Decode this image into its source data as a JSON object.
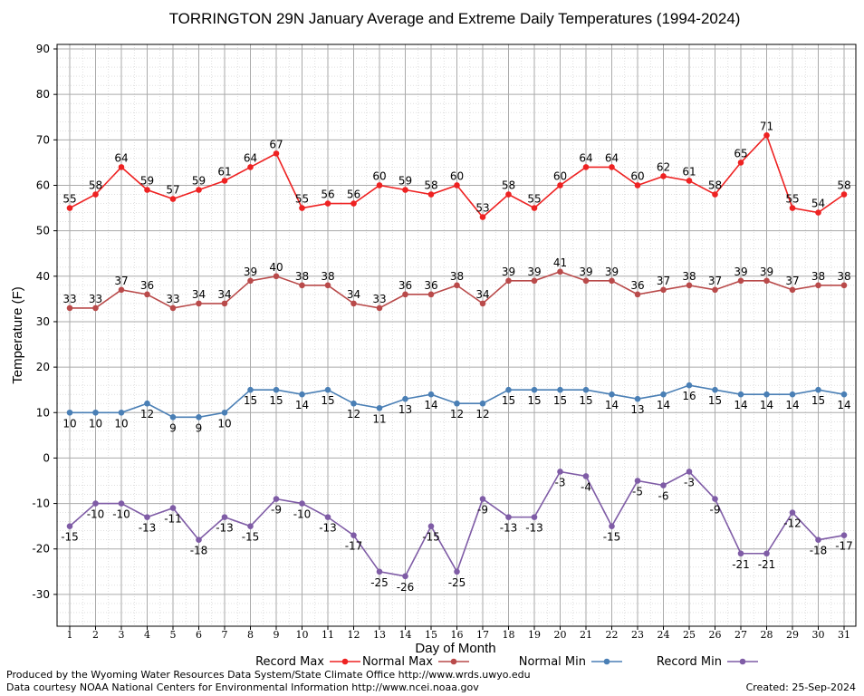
{
  "chart_data": {
    "type": "line",
    "title": "TORRINGTON 29N January Average and Extreme Daily Temperatures (1994-2024)",
    "xlabel": "Day of Month",
    "ylabel": "Temperature (F)",
    "x": [
      1,
      2,
      3,
      4,
      5,
      6,
      7,
      8,
      9,
      10,
      11,
      12,
      13,
      14,
      15,
      16,
      17,
      18,
      19,
      20,
      21,
      22,
      23,
      24,
      25,
      26,
      27,
      28,
      29,
      30,
      31
    ],
    "ylim": [
      -37,
      91
    ],
    "yticks": [
      -30,
      -20,
      -10,
      0,
      10,
      20,
      30,
      40,
      50,
      60,
      70,
      80,
      90
    ],
    "grid": true,
    "legend_position": "bottom",
    "series": [
      {
        "name": "Record Max",
        "color": "#ee2222",
        "values": [
          55,
          58,
          64,
          59,
          57,
          59,
          61,
          64,
          67,
          55,
          56,
          56,
          60,
          59,
          58,
          60,
          53,
          58,
          55,
          60,
          64,
          64,
          60,
          62,
          61,
          58,
          65,
          71,
          55,
          54,
          58
        ]
      },
      {
        "name": "Normal Max",
        "color": "#b94a4a",
        "values": [
          33,
          33,
          37,
          36,
          33,
          34,
          34,
          39,
          40,
          38,
          38,
          34,
          33,
          36,
          36,
          38,
          34,
          39,
          39,
          41,
          39,
          39,
          36,
          37,
          38,
          37,
          39,
          39,
          37,
          38,
          38
        ]
      },
      {
        "name": "Normal Min",
        "color": "#4a7fb5",
        "values": [
          10,
          10,
          10,
          12,
          9,
          9,
          10,
          15,
          15,
          14,
          15,
          12,
          11,
          13,
          14,
          12,
          12,
          15,
          15,
          15,
          15,
          14,
          13,
          14,
          16,
          15,
          14,
          14,
          14,
          15,
          14
        ]
      },
      {
        "name": "Record Min",
        "color": "#7f5ca6",
        "values": [
          -15,
          -10,
          -10,
          -13,
          -11,
          -18,
          -13,
          -15,
          -9,
          -10,
          -13,
          -17,
          -25,
          -26,
          -15,
          -25,
          -9,
          -13,
          -13,
          -3,
          -4,
          -15,
          -5,
          -6,
          -3,
          -9,
          -21,
          -21,
          -12,
          -18,
          -17
        ]
      }
    ]
  },
  "footer": {
    "line1": "Produced by the Wyoming Water Resources Data System/State Climate Office http://www.wrds.uwyo.edu",
    "line2": "Data courtesy NOAA National Centers for Environmental Information http://www.ncei.noaa.gov",
    "created": "Created:  25-Sep-2024"
  }
}
